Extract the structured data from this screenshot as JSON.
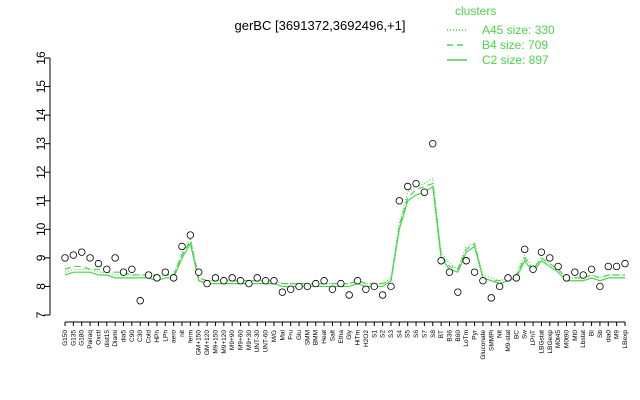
{
  "chart_data": {
    "type": "line",
    "title": "gerBC [3691372,3692496,+1]",
    "legend_title": "clusters",
    "categories": [
      "G150",
      "G135",
      "G180",
      "Pairaq",
      "Oxctl",
      "dist15",
      "Diami",
      "dia5",
      "C90",
      "C30",
      "Cold",
      "HPh",
      "LPh",
      "aero",
      "nit",
      "ferm",
      "GM+150",
      "GM+120",
      "M9+150",
      "M9+120",
      "M9+90",
      "M9+60",
      "M9+30",
      "UNT-30",
      "UNT-60",
      "M/G",
      "Mal",
      "Fru",
      "Glu",
      "SMM",
      "BMM",
      "Heat",
      "Salt",
      "Etha",
      "Gly",
      "HiTm",
      "H2O2",
      "S1",
      "S2",
      "S3",
      "S4",
      "S5",
      "S6",
      "S7",
      "S8",
      "BT",
      "B36",
      "B60",
      "LoTm",
      "Pyr",
      "Gluconate",
      "SMMPi",
      "Nit",
      "M9-stat",
      "BC",
      "Sw",
      "LPhT",
      "LBGstat",
      "LBGexp",
      "M0t45",
      "M0t90",
      "Mt0",
      "Lbstat",
      "BI",
      "Sb",
      "dia0",
      "M9",
      "LBexp"
    ],
    "values": [
      9.0,
      9.1,
      9.2,
      9.0,
      8.8,
      8.6,
      9.0,
      8.5,
      8.6,
      7.5,
      8.4,
      8.3,
      8.5,
      8.3,
      9.4,
      9.8,
      8.5,
      8.1,
      8.3,
      8.2,
      8.3,
      8.2,
      8.1,
      8.3,
      8.2,
      8.2,
      7.8,
      7.9,
      8.0,
      8.0,
      8.1,
      8.2,
      7.9,
      8.1,
      7.7,
      8.2,
      7.9,
      8.0,
      7.7,
      8.0,
      11.0,
      11.5,
      11.6,
      11.3,
      13.0,
      8.9,
      8.5,
      7.8,
      8.9,
      8.5,
      8.2,
      7.6,
      8.0,
      8.3,
      8.3,
      9.3,
      8.6,
      9.2,
      9.0,
      8.7,
      8.3,
      8.5,
      8.4,
      8.6,
      8.0,
      8.7,
      8.7,
      8.8
    ],
    "series": [
      {
        "name": "A45 size: 330",
        "color": "#4cd44c",
        "dash": "1,2",
        "values": [
          8.5,
          8.6,
          8.6,
          8.6,
          8.5,
          8.5,
          8.4,
          8.4,
          8.4,
          8.4,
          8.4,
          8.3,
          8.4,
          8.4,
          9.2,
          9.7,
          8.3,
          8.2,
          8.2,
          8.2,
          8.2,
          8.2,
          8.2,
          8.2,
          8.2,
          8.2,
          8.1,
          8.1,
          8.1,
          8.1,
          8.1,
          8.1,
          8.1,
          8.1,
          8.1,
          8.2,
          8.1,
          8.1,
          8.1,
          8.3,
          10.2,
          11.3,
          11.5,
          11.6,
          11.8,
          9.2,
          8.8,
          8.6,
          9.4,
          9.5,
          8.4,
          8.3,
          8.2,
          8.3,
          8.4,
          9.1,
          8.6,
          9.0,
          8.8,
          8.6,
          8.3,
          8.3,
          8.3,
          8.4,
          8.3,
          8.4,
          8.4,
          8.4
        ]
      },
      {
        "name": "B4 size: 709",
        "color": "#4cd44c",
        "dash": "6,4",
        "values": [
          8.6,
          8.7,
          8.7,
          8.6,
          8.6,
          8.5,
          8.5,
          8.5,
          8.4,
          8.4,
          8.4,
          8.4,
          8.4,
          8.4,
          9.1,
          9.6,
          8.3,
          8.2,
          8.2,
          8.2,
          8.2,
          8.2,
          8.2,
          8.2,
          8.2,
          8.2,
          8.1,
          8.1,
          8.1,
          8.1,
          8.1,
          8.1,
          8.1,
          8.1,
          8.1,
          8.2,
          8.1,
          8.1,
          8.1,
          8.2,
          10.1,
          11.1,
          11.4,
          11.5,
          11.6,
          9.1,
          8.7,
          8.6,
          9.3,
          9.5,
          8.3,
          8.2,
          8.2,
          8.3,
          8.4,
          9.0,
          8.6,
          9.0,
          8.8,
          8.6,
          8.3,
          8.3,
          8.3,
          8.4,
          8.3,
          8.4,
          8.4,
          8.4
        ]
      },
      {
        "name": "C2 size: 897",
        "color": "#4cd44c",
        "dash": "none",
        "values": [
          8.4,
          8.5,
          8.5,
          8.5,
          8.4,
          8.4,
          8.3,
          8.3,
          8.3,
          8.3,
          8.3,
          8.2,
          8.3,
          8.3,
          9.0,
          9.5,
          8.2,
          8.1,
          8.1,
          8.1,
          8.1,
          8.1,
          8.1,
          8.1,
          8.1,
          8.1,
          8.0,
          8.0,
          8.0,
          8.0,
          8.0,
          8.0,
          8.0,
          8.0,
          8.0,
          8.1,
          8.0,
          8.0,
          8.0,
          8.2,
          10.0,
          11.0,
          11.2,
          11.3,
          11.5,
          9.0,
          8.6,
          8.5,
          9.2,
          9.4,
          8.3,
          8.2,
          8.1,
          8.2,
          8.3,
          8.9,
          8.5,
          8.9,
          8.7,
          8.5,
          8.2,
          8.2,
          8.2,
          8.3,
          8.2,
          8.3,
          8.3,
          8.3
        ]
      }
    ],
    "ylim": [
      7,
      16
    ],
    "yticks": [
      7,
      8,
      9,
      10,
      11,
      12,
      13,
      14,
      15,
      16
    ]
  }
}
